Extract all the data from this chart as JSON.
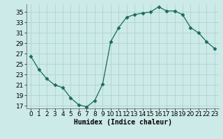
{
  "x": [
    0,
    1,
    2,
    3,
    4,
    5,
    6,
    7,
    8,
    9,
    10,
    11,
    12,
    13,
    14,
    15,
    16,
    17,
    18,
    19,
    20,
    21,
    22,
    23
  ],
  "y": [
    26.5,
    24.0,
    22.2,
    21.0,
    20.5,
    18.5,
    17.2,
    16.8,
    18.0,
    21.2,
    29.3,
    32.0,
    34.0,
    34.5,
    34.8,
    35.0,
    36.0,
    35.2,
    35.2,
    34.5,
    32.0,
    31.0,
    29.3,
    28.0
  ],
  "line_color": "#1a6b5a",
  "marker": "D",
  "marker_size": 2.5,
  "bg_color": "#cceae7",
  "grid_color": "#b0d4d0",
  "xlabel": "Humidex (Indice chaleur)",
  "xlim": [
    -0.5,
    23.5
  ],
  "ylim": [
    16.5,
    36.5
  ],
  "yticks": [
    17,
    19,
    21,
    23,
    25,
    27,
    29,
    31,
    33,
    35
  ],
  "xticks": [
    0,
    1,
    2,
    3,
    4,
    5,
    6,
    7,
    8,
    9,
    10,
    11,
    12,
    13,
    14,
    15,
    16,
    17,
    18,
    19,
    20,
    21,
    22,
    23
  ],
  "xlabel_fontsize": 7,
  "tick_fontsize": 6.5
}
